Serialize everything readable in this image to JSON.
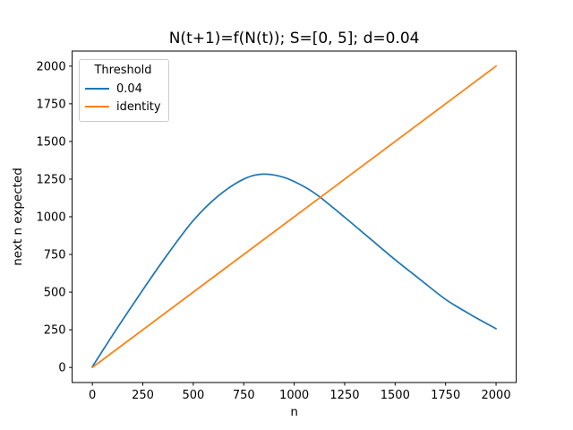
{
  "chart_data": {
    "type": "line",
    "title": "N(t+1)=f(N(t)); S=[0, 5]; d=0.04",
    "xlabel": "n",
    "ylabel": "next n expected",
    "xlim": [
      -100,
      2100
    ],
    "ylim": [
      -100,
      2100
    ],
    "x_ticks": [
      0,
      250,
      500,
      750,
      1000,
      1250,
      1500,
      1750,
      2000
    ],
    "y_ticks": [
      0,
      250,
      500,
      750,
      1000,
      1250,
      1500,
      1750,
      2000
    ],
    "grid": false,
    "background": "#ffffff",
    "spine_color": "#000000",
    "legend": {
      "title": "Threshold",
      "position": "upper left",
      "edge_color": "#cccccc",
      "entries": [
        {
          "label": "0.04",
          "color": "#1f77b4"
        },
        {
          "label": "identity",
          "color": "#ff7f0e"
        }
      ]
    },
    "series": [
      {
        "name": "0.04",
        "color": "#1f77b4",
        "smooth": true,
        "x": [
          0,
          125,
          250,
          375,
          500,
          625,
          750,
          845,
          950,
          1060,
          1130,
          1250,
          1375,
          1500,
          1625,
          1750,
          1875,
          2000
        ],
        "y": [
          5,
          265,
          515,
          755,
          975,
          1140,
          1250,
          1283,
          1261,
          1192,
          1128,
          997,
          856,
          715,
          583,
          452,
          350,
          257
        ]
      },
      {
        "name": "identity",
        "color": "#ff7f0e",
        "smooth": false,
        "x": [
          0,
          2000
        ],
        "y": [
          0,
          2000
        ]
      }
    ]
  }
}
